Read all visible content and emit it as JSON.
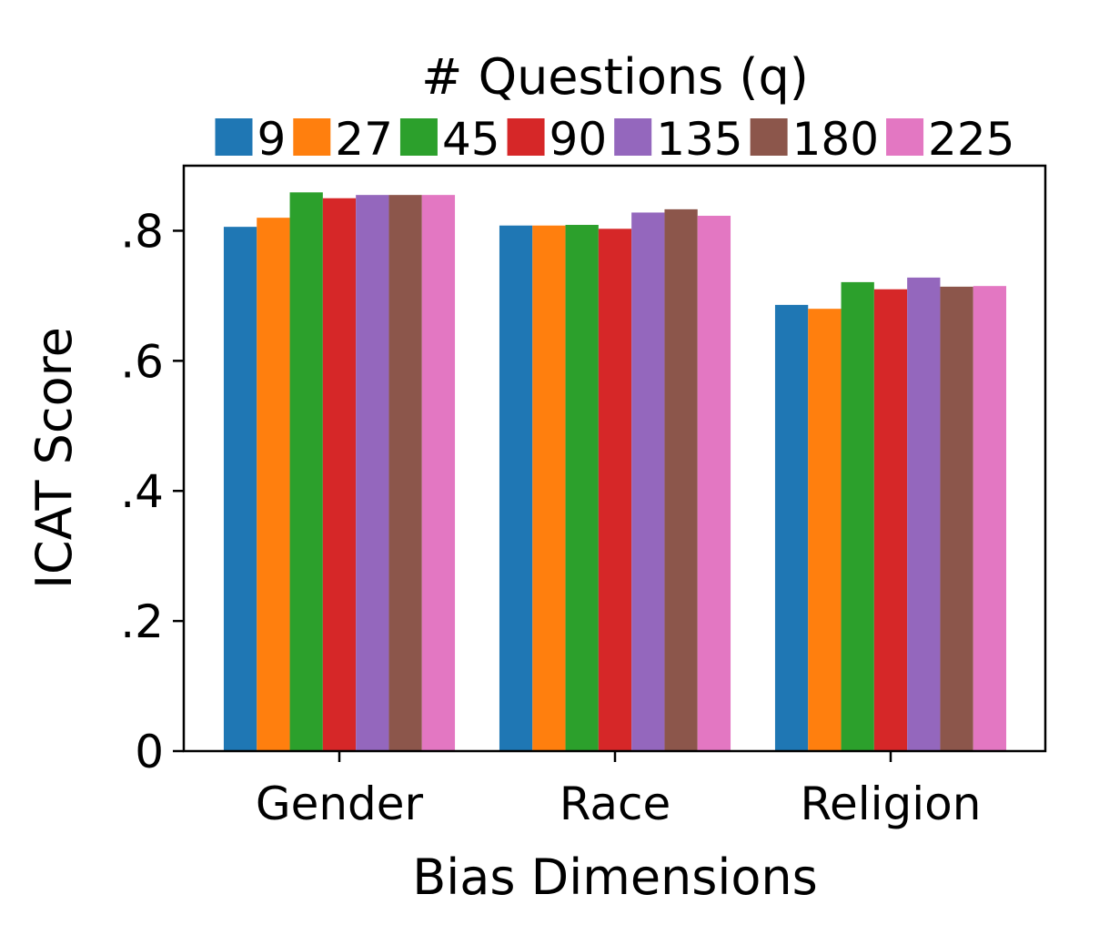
{
  "chart_data": {
    "type": "bar",
    "title": "",
    "xlabel": "Bias Dimensions",
    "ylabel": "ICAT Score",
    "categories": [
      "Gender",
      "Race",
      "Religion"
    ],
    "ylim": [
      0,
      0.9
    ],
    "yticks": [
      {
        "value": 0,
        "label": "0"
      },
      {
        "value": 0.2,
        "label": ".2"
      },
      {
        "value": 0.4,
        "label": ".4"
      },
      {
        "value": 0.6,
        "label": ".6"
      },
      {
        "value": 0.8,
        "label": ".8"
      }
    ],
    "grid": false,
    "legend": {
      "title": "# Questions (q)",
      "placement": "top",
      "columns": 7
    },
    "series": [
      {
        "name": "9",
        "color": "#1f77b4",
        "values": [
          0.806,
          0.808,
          0.686
        ]
      },
      {
        "name": "27",
        "color": "#ff7f0e",
        "values": [
          0.82,
          0.808,
          0.68
        ]
      },
      {
        "name": "45",
        "color": "#2ca02c",
        "values": [
          0.859,
          0.809,
          0.721
        ]
      },
      {
        "name": "90",
        "color": "#d62728",
        "values": [
          0.85,
          0.803,
          0.71
        ]
      },
      {
        "name": "135",
        "color": "#9467bd",
        "values": [
          0.855,
          0.828,
          0.728
        ]
      },
      {
        "name": "180",
        "color": "#8c564b",
        "values": [
          0.855,
          0.833,
          0.714
        ]
      },
      {
        "name": "225",
        "color": "#e377c2",
        "values": [
          0.855,
          0.823,
          0.715
        ]
      }
    ]
  }
}
